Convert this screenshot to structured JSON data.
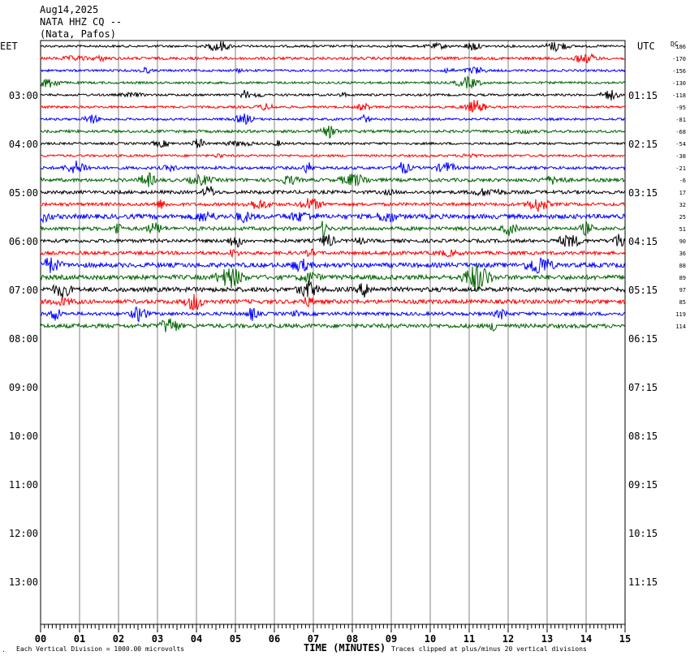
{
  "header": {
    "date": "Aug14,2025",
    "station": "NATA HHZ CQ --",
    "location": "(Nata, Pafos)"
  },
  "left_tz": "EET",
  "right_tz": "UTC",
  "dc_label": "DC",
  "footer": {
    "left_note": "Each Vertical Division = 1000.00 microvolts",
    "center_label": "TIME (MINUTES)",
    "right_note": "Traces clipped at plus/minus 20 vertical divisions"
  },
  "chart_data": {
    "type": "line",
    "title": "NATA HHZ CQ --",
    "xlabel": "TIME (MINUTES)",
    "ylabel": "",
    "xlim": [
      0,
      15
    ],
    "x_ticks": [
      "00",
      "01",
      "02",
      "03",
      "04",
      "05",
      "06",
      "07",
      "08",
      "09",
      "10",
      "11",
      "12",
      "13",
      "14",
      "15"
    ],
    "left_hour_labels": [
      "03:00",
      "04:00",
      "05:00",
      "06:00",
      "07:00",
      "08:00",
      "09:00",
      "10:00",
      "11:00",
      "12:00",
      "13:00"
    ],
    "right_hour_labels": [
      "01:15",
      "02:15",
      "03:15",
      "04:15",
      "05:15",
      "06:15",
      "07:15",
      "08:15",
      "09:15",
      "10:15",
      "11:15"
    ],
    "trace_colors": [
      "#000000",
      "#ff0000",
      "#0000ff",
      "#006400"
    ],
    "dc_offsets": [
      -186,
      -170,
      -156,
      -130,
      -118,
      -95,
      -81,
      -68,
      -54,
      -38,
      -21,
      -6,
      17,
      32,
      25,
      51,
      90,
      36,
      88,
      89,
      97,
      85,
      119,
      114
    ],
    "trace_amplitude": [
      1,
      1.2,
      1,
      1,
      1,
      1,
      1,
      1.2,
      1,
      1,
      1.3,
      1.5,
      1.5,
      1.4,
      2,
      1.6,
      1.5,
      1.5,
      2,
      2,
      2,
      1.8,
      1.5,
      1.8
    ]
  }
}
